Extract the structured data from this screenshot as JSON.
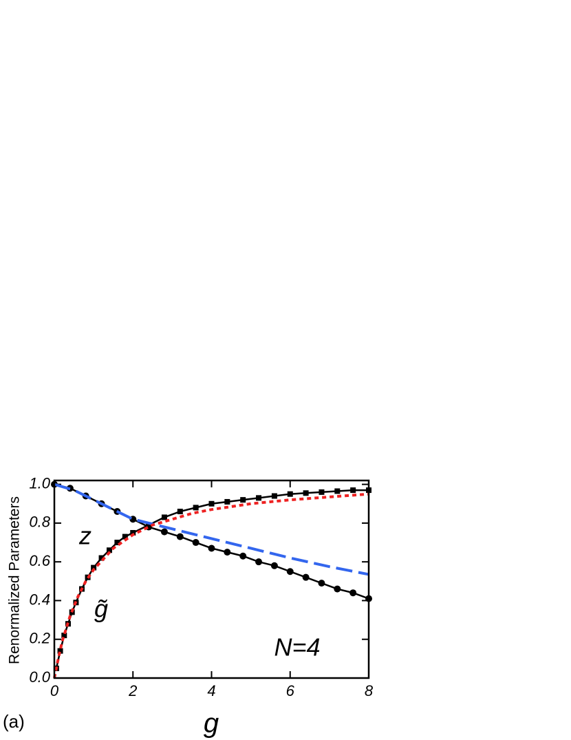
{
  "chart_data": {
    "type": "line",
    "xlabel": "g",
    "ylabel": "Renormalized Parameters",
    "xlim": [
      0,
      8
    ],
    "ylim": [
      0,
      1.02
    ],
    "xticks": [
      0,
      2,
      4,
      6,
      8
    ],
    "yticks": [
      {
        "value": 0,
        "label": "0.0"
      },
      0.2,
      0.4,
      0.6,
      0.8,
      {
        "value": 1,
        "label": "1.0"
      }
    ],
    "annotations": [
      "z",
      "g̃",
      "N=4",
      "(a)"
    ],
    "series": [
      {
        "color": "#3366ee",
        "style": "dashed",
        "x": [
          0,
          0.5,
          1,
          1.5,
          2,
          2.5,
          3,
          4,
          5,
          6,
          7,
          8
        ],
        "values": [
          1.0,
          0.97,
          0.92,
          0.87,
          0.82,
          0.795,
          0.77,
          0.72,
          0.67,
          0.62,
          0.575,
          0.535
        ]
      },
      {
        "color": "#ee2222",
        "style": "dotted",
        "x": [
          0,
          0.1,
          0.2,
          0.4,
          0.6,
          0.8,
          1,
          1.5,
          2,
          2.5,
          3,
          3.5,
          4,
          5,
          6,
          7,
          8
        ],
        "values": [
          0,
          0.1,
          0.19,
          0.32,
          0.42,
          0.5,
          0.56,
          0.67,
          0.74,
          0.79,
          0.82,
          0.85,
          0.87,
          0.9,
          0.92,
          0.935,
          0.95
        ]
      },
      {
        "color": "#000000",
        "style": "circle",
        "x": [
          0,
          0.4,
          0.8,
          1.2,
          1.6,
          2.0,
          2.4,
          2.8,
          3.2,
          3.6,
          4.0,
          4.4,
          4.8,
          5.2,
          5.6,
          6.0,
          6.4,
          6.8,
          7.2,
          7.6,
          8.0
        ],
        "values": [
          1.0,
          0.98,
          0.94,
          0.9,
          0.86,
          0.82,
          0.78,
          0.755,
          0.73,
          0.7,
          0.67,
          0.65,
          0.63,
          0.6,
          0.58,
          0.55,
          0.52,
          0.49,
          0.46,
          0.44,
          0.41
        ]
      },
      {
        "color": "#000000",
        "style": "square",
        "x": [
          0.05,
          0.15,
          0.25,
          0.35,
          0.45,
          0.55,
          0.7,
          0.85,
          1.0,
          1.2,
          1.4,
          1.6,
          1.8,
          2.0,
          2.4,
          2.8,
          3.2,
          3.6,
          4.0,
          4.4,
          4.8,
          5.2,
          5.6,
          6.0,
          6.4,
          6.8,
          7.2,
          7.6,
          8.0
        ],
        "values": [
          0.05,
          0.14,
          0.22,
          0.28,
          0.34,
          0.39,
          0.46,
          0.52,
          0.57,
          0.62,
          0.66,
          0.7,
          0.73,
          0.75,
          0.79,
          0.83,
          0.86,
          0.88,
          0.9,
          0.91,
          0.92,
          0.93,
          0.94,
          0.95,
          0.955,
          0.96,
          0.965,
          0.97,
          0.97
        ]
      }
    ]
  }
}
